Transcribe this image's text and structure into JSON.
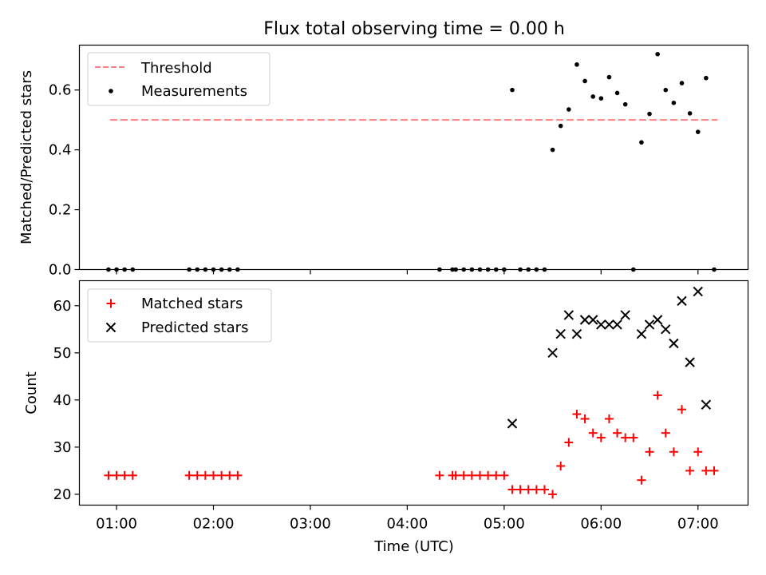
{
  "title": "Flux total observing time = 0.00 h",
  "colors": {
    "threshold": "#ff7f7f",
    "measurement": "#000000",
    "matched": "#ff0000",
    "predicted": "#000000"
  },
  "chart_data": [
    {
      "type": "scatter",
      "panel": "top",
      "ylabel": "Matched/Predicted stars",
      "xlim": [
        "00:37",
        "07:31"
      ],
      "ylim": [
        0,
        0.75
      ],
      "yticks": [
        0.0,
        0.2,
        0.4,
        0.6
      ],
      "ytick_labels": [
        "0.0",
        "0.2",
        "0.4",
        "0.6"
      ],
      "legend": {
        "position": "upper-left",
        "entries": [
          "Threshold",
          "Measurements"
        ]
      },
      "threshold": {
        "name": "Threshold",
        "y": 0.5,
        "x_start": "00:56",
        "x_end": "07:12"
      },
      "series": [
        {
          "name": "Measurements",
          "points": [
            [
              "00:55",
              0.0
            ],
            [
              "01:00",
              0.0
            ],
            [
              "01:05",
              0.0
            ],
            [
              "01:10",
              0.0
            ],
            [
              "01:45",
              0.0
            ],
            [
              "01:50",
              0.0
            ],
            [
              "01:55",
              0.0
            ],
            [
              "02:00",
              0.0
            ],
            [
              "02:05",
              0.0
            ],
            [
              "02:10",
              0.0
            ],
            [
              "02:15",
              0.0
            ],
            [
              "04:20",
              0.0
            ],
            [
              "04:28",
              0.0
            ],
            [
              "04:30",
              0.0
            ],
            [
              "04:35",
              0.0
            ],
            [
              "04:40",
              0.0
            ],
            [
              "04:45",
              0.0
            ],
            [
              "04:50",
              0.0
            ],
            [
              "04:55",
              0.0
            ],
            [
              "05:00",
              0.0
            ],
            [
              "05:05",
              0.6
            ],
            [
              "05:10",
              0.0
            ],
            [
              "05:15",
              0.0
            ],
            [
              "05:20",
              0.0
            ],
            [
              "05:25",
              0.0
            ],
            [
              "05:30",
              0.4
            ],
            [
              "05:35",
              0.48
            ],
            [
              "05:40",
              0.535
            ],
            [
              "05:45",
              0.685
            ],
            [
              "05:50",
              0.63
            ],
            [
              "05:55",
              0.578
            ],
            [
              "06:00",
              0.572
            ],
            [
              "06:05",
              0.643
            ],
            [
              "06:10",
              0.59
            ],
            [
              "06:15",
              0.552
            ],
            [
              "06:20",
              0.0
            ],
            [
              "06:25",
              0.425
            ],
            [
              "06:30",
              0.52
            ],
            [
              "06:35",
              0.72
            ],
            [
              "06:40",
              0.6
            ],
            [
              "06:45",
              0.557
            ],
            [
              "06:50",
              0.623
            ],
            [
              "06:55",
              0.522
            ],
            [
              "07:00",
              0.46
            ],
            [
              "07:05",
              0.64
            ],
            [
              "07:10",
              0.0
            ]
          ]
        }
      ]
    },
    {
      "type": "scatter",
      "panel": "bottom",
      "xlabel": "Time (UTC)",
      "ylabel": "Count",
      "xlim": [
        "00:37",
        "07:31"
      ],
      "ylim": [
        17.7,
        65.3
      ],
      "xticks": [
        "01:00",
        "02:00",
        "03:00",
        "04:00",
        "05:00",
        "06:00",
        "07:00"
      ],
      "yticks": [
        20,
        30,
        40,
        50,
        60
      ],
      "ytick_labels": [
        "20",
        "30",
        "40",
        "50",
        "60"
      ],
      "legend": {
        "position": "upper-left",
        "entries": [
          "Matched stars",
          "Predicted stars"
        ]
      },
      "series": [
        {
          "name": "Matched stars",
          "marker": "plus",
          "points": [
            [
              "00:55",
              24
            ],
            [
              "01:00",
              24
            ],
            [
              "01:05",
              24
            ],
            [
              "01:10",
              24
            ],
            [
              "01:45",
              24
            ],
            [
              "01:50",
              24
            ],
            [
              "01:55",
              24
            ],
            [
              "02:00",
              24
            ],
            [
              "02:05",
              24
            ],
            [
              "02:10",
              24
            ],
            [
              "02:15",
              24
            ],
            [
              "04:20",
              24
            ],
            [
              "04:28",
              24
            ],
            [
              "04:30",
              24
            ],
            [
              "04:35",
              24
            ],
            [
              "04:40",
              24
            ],
            [
              "04:45",
              24
            ],
            [
              "04:50",
              24
            ],
            [
              "04:55",
              24
            ],
            [
              "05:00",
              24
            ],
            [
              "05:05",
              21
            ],
            [
              "05:10",
              21
            ],
            [
              "05:15",
              21
            ],
            [
              "05:20",
              21
            ],
            [
              "05:25",
              21
            ],
            [
              "05:30",
              20
            ],
            [
              "05:35",
              26
            ],
            [
              "05:40",
              31
            ],
            [
              "05:45",
              37
            ],
            [
              "05:50",
              36
            ],
            [
              "05:55",
              33
            ],
            [
              "06:00",
              32
            ],
            [
              "06:05",
              36
            ],
            [
              "06:10",
              33
            ],
            [
              "06:15",
              32
            ],
            [
              "06:20",
              32
            ],
            [
              "06:25",
              23
            ],
            [
              "06:30",
              29
            ],
            [
              "06:35",
              41
            ],
            [
              "06:40",
              33
            ],
            [
              "06:45",
              29
            ],
            [
              "06:50",
              38
            ],
            [
              "06:55",
              25
            ],
            [
              "07:00",
              29
            ],
            [
              "07:05",
              25
            ],
            [
              "07:10",
              25
            ]
          ]
        },
        {
          "name": "Predicted stars",
          "marker": "x",
          "points": [
            [
              "05:05",
              35
            ],
            [
              "05:30",
              50
            ],
            [
              "05:35",
              54
            ],
            [
              "05:40",
              58
            ],
            [
              "05:45",
              54
            ],
            [
              "05:50",
              57
            ],
            [
              "05:55",
              57
            ],
            [
              "06:00",
              56
            ],
            [
              "06:05",
              56
            ],
            [
              "06:10",
              56
            ],
            [
              "06:15",
              58
            ],
            [
              "06:25",
              54
            ],
            [
              "06:30",
              56
            ],
            [
              "06:35",
              57
            ],
            [
              "06:40",
              55
            ],
            [
              "06:45",
              52
            ],
            [
              "06:50",
              61
            ],
            [
              "06:55",
              48
            ],
            [
              "07:00",
              63
            ],
            [
              "07:05",
              39
            ]
          ]
        }
      ]
    }
  ]
}
